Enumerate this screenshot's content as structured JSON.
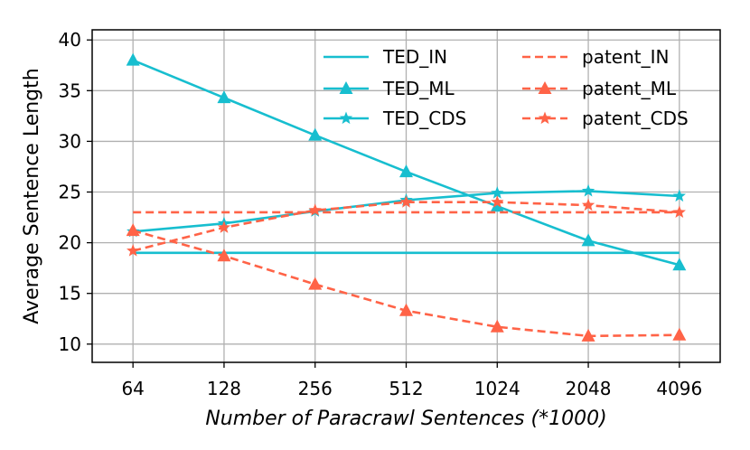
{
  "chart_data": {
    "type": "line",
    "xlabel": "Number of Paracrawl Sentences (*1000)",
    "ylabel": "Average Sentence Length",
    "categories": [
      "64",
      "128",
      "256",
      "512",
      "1024",
      "2048",
      "4096"
    ],
    "y_ticks": [
      10,
      15,
      20,
      25,
      30,
      35,
      40
    ],
    "ylim": [
      8.2,
      41
    ],
    "grid": true,
    "legend_position": "top-right",
    "series": [
      {
        "name": "TED_IN",
        "color": "#17becf",
        "dashed": false,
        "marker": "none",
        "values": [
          19.0,
          19.0,
          19.0,
          19.0,
          19.0,
          19.0,
          19.0
        ]
      },
      {
        "name": "TED_ML",
        "color": "#17becf",
        "dashed": false,
        "marker": "triangle",
        "values": [
          38.0,
          34.3,
          30.6,
          27.0,
          23.6,
          20.2,
          17.8
        ]
      },
      {
        "name": "TED_CDS",
        "color": "#17becf",
        "dashed": false,
        "marker": "star",
        "values": [
          21.1,
          21.9,
          23.1,
          24.2,
          24.9,
          25.1,
          24.6
        ]
      },
      {
        "name": "patent_IN",
        "color": "#ff6347",
        "dashed": true,
        "marker": "none",
        "values": [
          23.0,
          23.0,
          23.0,
          23.0,
          23.0,
          23.0,
          23.0
        ]
      },
      {
        "name": "patent_ML",
        "color": "#ff6347",
        "dashed": true,
        "marker": "triangle",
        "values": [
          21.2,
          18.7,
          15.9,
          13.3,
          11.7,
          10.8,
          10.9
        ]
      },
      {
        "name": "patent_CDS",
        "color": "#ff6347",
        "dashed": true,
        "marker": "star",
        "values": [
          19.2,
          21.5,
          23.2,
          24.0,
          24.0,
          23.7,
          23.0
        ]
      }
    ]
  }
}
